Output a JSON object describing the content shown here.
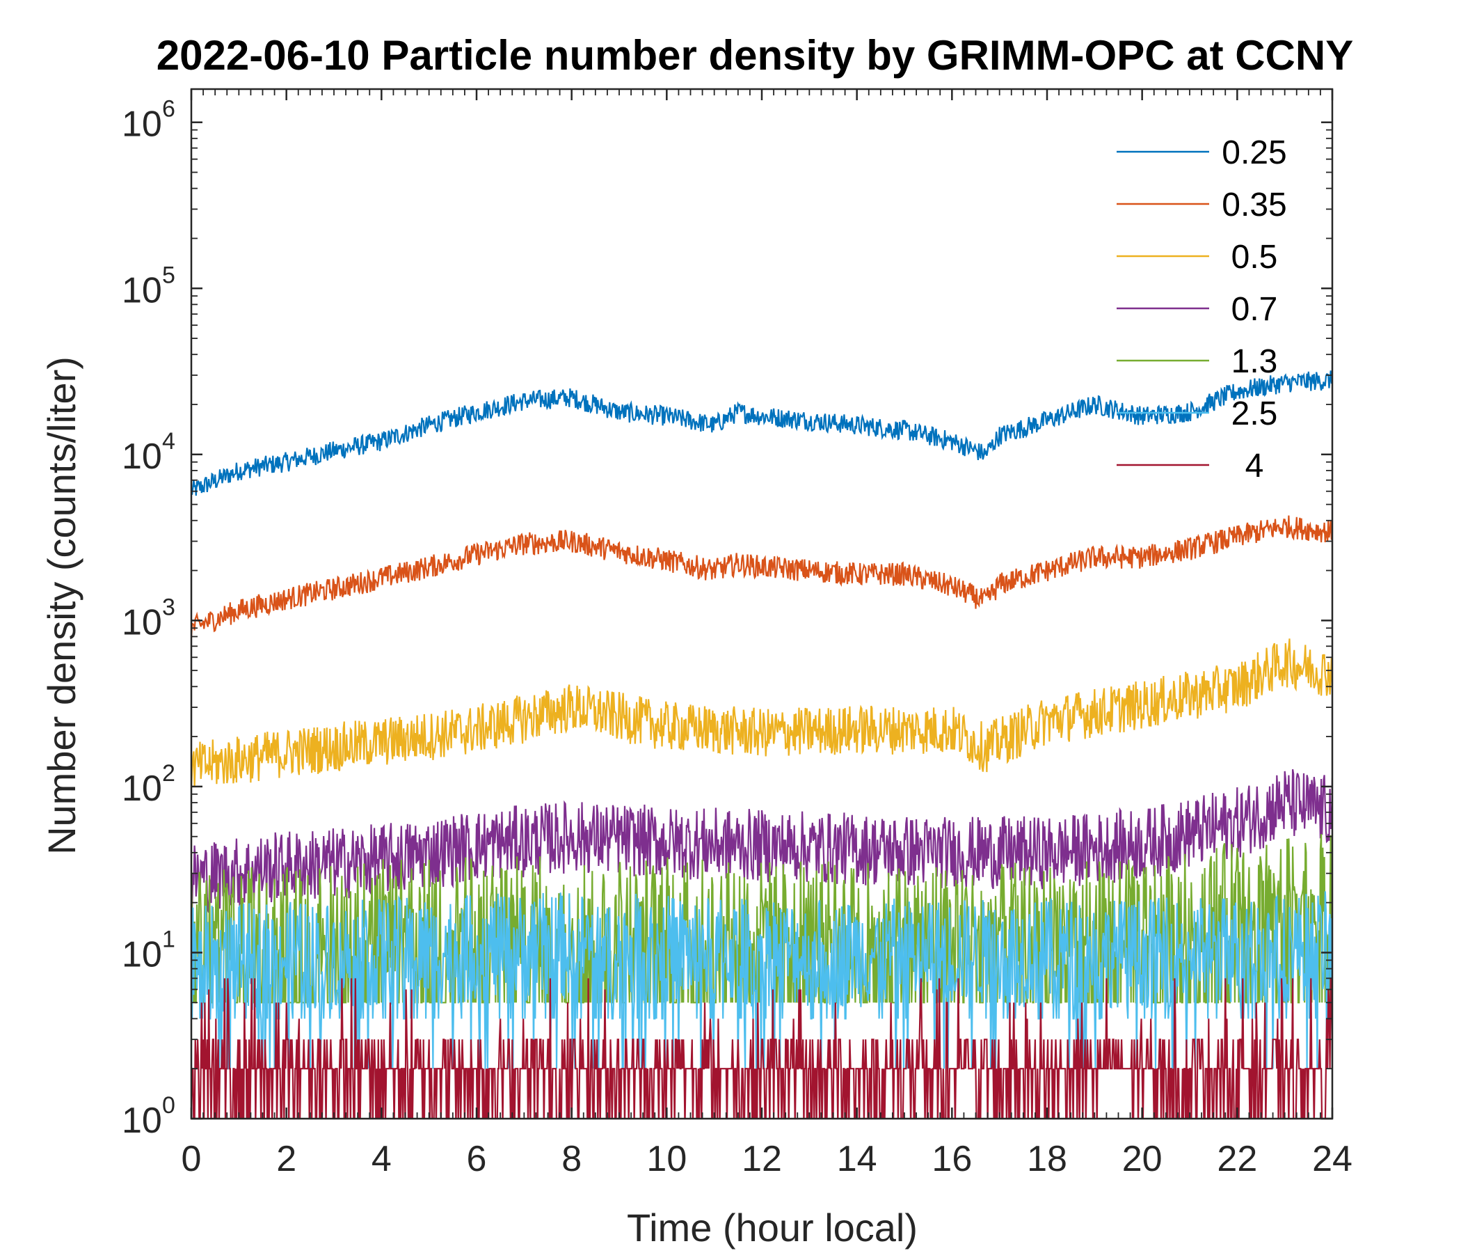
{
  "chart_data": {
    "type": "line",
    "title": "2022-06-10 Particle number density by GRIMM-OPC at CCNY",
    "xlabel": "Time (hour local)",
    "ylabel": "Number density (counts/liter)",
    "xlim": [
      0,
      24
    ],
    "ylim_exponent": [
      0,
      6.2
    ],
    "yscale": "log",
    "xticks": [
      0,
      2,
      4,
      6,
      8,
      10,
      12,
      14,
      16,
      18,
      20,
      22,
      24
    ],
    "yticks": [
      {
        "base": "10",
        "exp": "0",
        "value": 1
      },
      {
        "base": "10",
        "exp": "1",
        "value": 10
      },
      {
        "base": "10",
        "exp": "2",
        "value": 100
      },
      {
        "base": "10",
        "exp": "3",
        "value": 1000
      },
      {
        "base": "10",
        "exp": "4",
        "value": 10000
      },
      {
        "base": "10",
        "exp": "5",
        "value": 100000
      },
      {
        "base": "10",
        "exp": "6",
        "value": 1000000
      }
    ],
    "legend_position": "top-right",
    "series": [
      {
        "name": "0.25",
        "color": "#0072BD",
        "x": [
          0,
          1,
          2,
          3,
          4,
          5,
          6,
          7,
          8,
          9,
          10,
          11,
          11.5,
          12,
          13,
          14,
          15,
          16,
          16.7,
          17,
          18,
          19,
          20,
          21,
          22,
          23,
          24
        ],
        "y": [
          6000,
          8000,
          9000,
          10500,
          12000,
          15000,
          18000,
          21000,
          22000,
          18000,
          17000,
          15000,
          18000,
          17000,
          16000,
          15000,
          14000,
          12000,
          10000,
          13000,
          16000,
          20000,
          17000,
          18000,
          24000,
          27000,
          28000
        ]
      },
      {
        "name": "0.35",
        "color": "#D95319",
        "x": [
          0,
          1,
          2,
          3,
          4,
          5,
          6,
          7,
          8,
          9,
          10,
          11,
          11.5,
          12,
          13,
          14,
          15,
          16,
          16.7,
          17,
          18,
          19,
          20,
          21,
          22,
          23,
          24
        ],
        "y": [
          900,
          1150,
          1350,
          1550,
          1800,
          2100,
          2500,
          2900,
          3000,
          2600,
          2300,
          2000,
          2200,
          2100,
          2000,
          1900,
          1900,
          1600,
          1300,
          1650,
          2000,
          2400,
          2400,
          2700,
          3200,
          3700,
          3400
        ]
      },
      {
        "name": "0.5",
        "color": "#EDB120",
        "x": [
          0,
          2,
          4,
          6,
          8,
          10,
          12,
          14,
          16,
          16.7,
          18,
          20,
          22,
          23,
          24
        ],
        "y": [
          130,
          160,
          185,
          220,
          300,
          230,
          210,
          220,
          220,
          170,
          250,
          310,
          400,
          560,
          480
        ]
      },
      {
        "name": "0.7",
        "color": "#7E2F8E",
        "x": [
          0,
          2,
          4,
          6,
          8,
          10,
          12,
          14,
          16,
          18,
          20,
          22,
          23,
          24
        ],
        "y": [
          28,
          33,
          36,
          44,
          50,
          46,
          44,
          42,
          40,
          40,
          45,
          60,
          80,
          70
        ]
      },
      {
        "name": "1.3",
        "color": "#77AC30",
        "x": [
          0,
          4,
          8,
          12,
          16,
          20,
          22,
          24
        ],
        "y": [
          12,
          14,
          15,
          14,
          13,
          14,
          18,
          20
        ]
      },
      {
        "name": "2.5",
        "color": "#4DBEEE",
        "x": [
          0,
          4,
          8,
          12,
          16,
          20,
          24
        ],
        "y": [
          9,
          10,
          11,
          10,
          10,
          10,
          11
        ]
      },
      {
        "name": "4",
        "color": "#A2142F",
        "x": [
          0,
          4,
          8,
          12,
          16,
          20,
          24
        ],
        "y": [
          2,
          2,
          2,
          2,
          2,
          2,
          2
        ]
      }
    ]
  }
}
